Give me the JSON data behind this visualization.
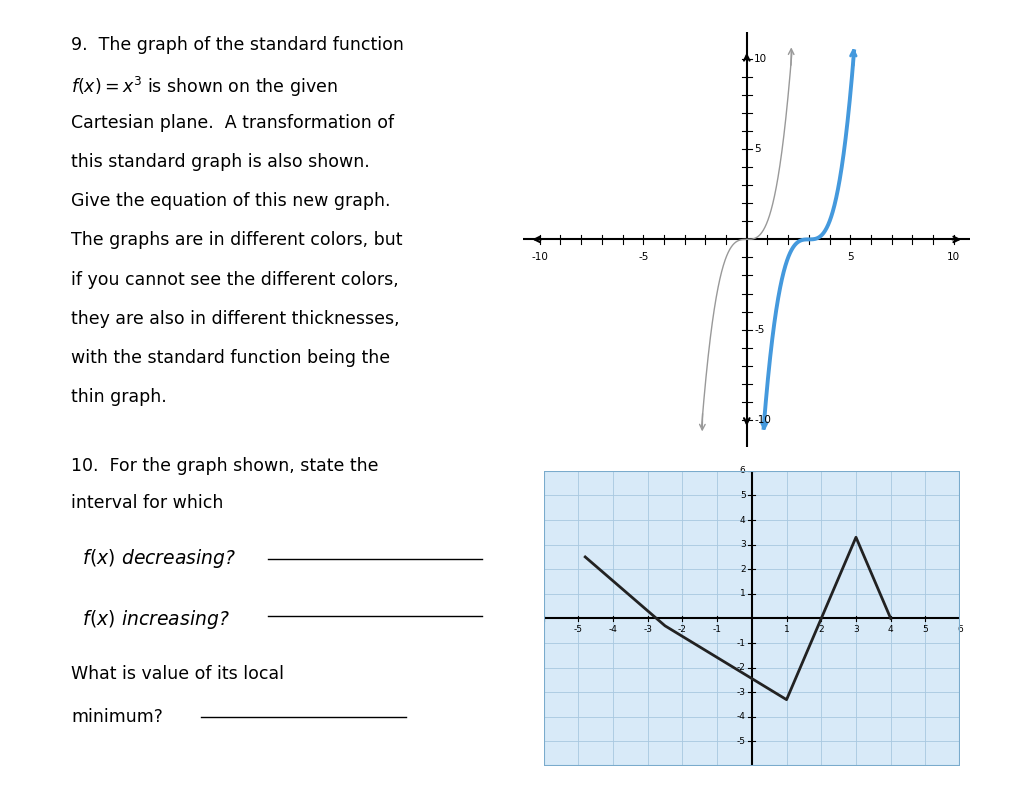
{
  "bg_color": "#ffffff",
  "text_q9_lines": [
    "9.  The graph of the standard function",
    "$f(x) = x^3$ is shown on the given",
    "Cartesian plane.  A transformation of",
    "this standard graph is also shown.",
    "Give the equation of this new graph.",
    "The graphs are in different colors, but",
    "if you cannot see the different colors,",
    "they are also in different thicknesses,",
    "with the standard function being the",
    "thin graph."
  ],
  "thin_color": "#999999",
  "thick_color": "#4499dd",
  "plot2_bg": "#d8eaf8",
  "plot2_grid_color": "#a8c8e0",
  "plot2_border_color": "#7aabcc"
}
